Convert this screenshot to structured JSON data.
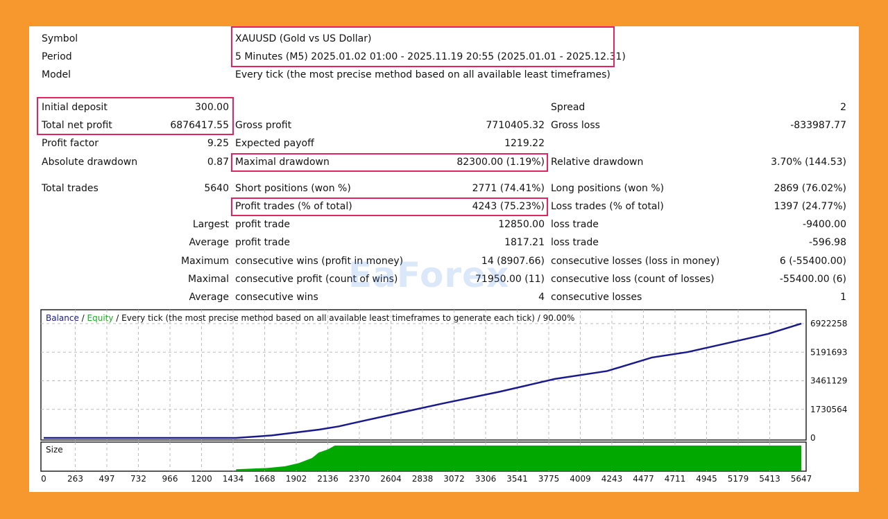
{
  "header": [
    {
      "label": "Symbol",
      "value": "XAUUSD (Gold vs US Dollar)"
    },
    {
      "label": "Period",
      "value": "5 Minutes (M5) 2025.01.02 01:00 - 2025.11.19 20:55 (2025.01.01 - 2025.12.31)"
    },
    {
      "label": "Model",
      "value": "Every tick (the most precise method based on all available least timeframes)"
    }
  ],
  "stats": [
    [
      {
        "label": "Initial deposit",
        "value": "300.00"
      },
      {
        "label": "",
        "value": ""
      },
      {
        "label": "Spread",
        "value": "2"
      }
    ],
    [
      {
        "label": "Total net profit",
        "value": "6876417.55"
      },
      {
        "label": "Gross profit",
        "value": "7710405.32"
      },
      {
        "label": "Gross loss",
        "value": "-833987.77"
      }
    ],
    [
      {
        "label": "Profit factor",
        "value": "9.25"
      },
      {
        "label": "Expected payoff",
        "value": "1219.22"
      },
      {
        "label": "",
        "value": ""
      }
    ],
    [
      {
        "label": "Absolute drawdown",
        "value": "0.87"
      },
      {
        "label": "Maximal drawdown",
        "value": "82300.00 (1.19%)"
      },
      {
        "label": "Relative drawdown",
        "value": "3.70% (144.53)"
      }
    ],
    [
      {
        "label": "Total trades",
        "value": "5640"
      },
      {
        "label": "Short positions (won %)",
        "value": "2771 (74.41%)"
      },
      {
        "label": "Long positions (won %)",
        "value": "2869 (76.02%)"
      }
    ],
    [
      {
        "label": "",
        "value": ""
      },
      {
        "label": "Profit trades (% of total)",
        "value": "4243 (75.23%)"
      },
      {
        "label": "Loss trades (% of total)",
        "value": "1397 (24.77%)"
      }
    ],
    [
      {
        "label": "",
        "value": "Largest"
      },
      {
        "label": "profit trade",
        "value": "12850.00"
      },
      {
        "label": "loss trade",
        "value": "-9400.00"
      }
    ],
    [
      {
        "label": "",
        "value": "Average"
      },
      {
        "label": "profit trade",
        "value": "1817.21"
      },
      {
        "label": "loss trade",
        "value": "-596.98"
      }
    ],
    [
      {
        "label": "",
        "value": "Maximum"
      },
      {
        "label": "consecutive wins (profit in money)",
        "value": "14 (8907.66)"
      },
      {
        "label": "consecutive losses (loss in money)",
        "value": "6 (-55400.00)"
      }
    ],
    [
      {
        "label": "",
        "value": "Maximal"
      },
      {
        "label": "consecutive profit (count of wins)",
        "value": "71950.00 (11)"
      },
      {
        "label": "consecutive loss (count of losses)",
        "value": "-55400.00 (6)"
      }
    ],
    [
      {
        "label": "",
        "value": "Average"
      },
      {
        "label": "consecutive wins",
        "value": "4"
      },
      {
        "label": "consecutive losses",
        "value": "1"
      }
    ]
  ],
  "watermark_logo": "EaForex",
  "colors": {
    "highlight": "#e0245e",
    "balance": "#1a1a8c",
    "equity": "#22aa22",
    "size": "#00a800",
    "background": "#f7982f"
  },
  "chart_data": {
    "type": "line",
    "legend": {
      "balance": "Balance",
      "sep1": " / ",
      "equity": "Equity",
      "rest": " / Every tick (the most precise method based on all available least timeframes to generate each tick) / 90.00%"
    },
    "xticks": [
      "0",
      "263",
      "497",
      "732",
      "966",
      "1200",
      "1434",
      "1668",
      "1902",
      "2136",
      "2370",
      "2604",
      "2838",
      "3072",
      "3306",
      "3541",
      "3775",
      "4009",
      "4243",
      "4477",
      "4711",
      "4945",
      "5179",
      "5413",
      "5647"
    ],
    "yticks": [
      "6922258",
      "5191693",
      "3461129",
      "1730564",
      "0"
    ],
    "ylim": [
      0,
      6922258
    ],
    "xlim": [
      0,
      5647
    ],
    "grid": true,
    "balance": [
      [
        0,
        300
      ],
      [
        1434,
        300
      ],
      [
        1700,
        150000
      ],
      [
        2053,
        503000
      ],
      [
        2200,
        700000
      ],
      [
        2363,
        1000000
      ],
      [
        2700,
        1600000
      ],
      [
        2983,
        2100000
      ],
      [
        3400,
        2800000
      ],
      [
        3810,
        3570000
      ],
      [
        4200,
        4050000
      ],
      [
        4534,
        4870000
      ],
      [
        4800,
        5200000
      ],
      [
        5102,
        5750000
      ],
      [
        5400,
        6300000
      ],
      [
        5647,
        6922258
      ]
    ],
    "size_panel_label": "Size",
    "size": [
      [
        1434,
        0.05
      ],
      [
        1668,
        0.1
      ],
      [
        1800,
        0.17
      ],
      [
        1902,
        0.3
      ],
      [
        2000,
        0.5
      ],
      [
        2050,
        0.72
      ],
      [
        2120,
        0.85
      ],
      [
        2170,
        1.0
      ],
      [
        5647,
        1.0
      ]
    ]
  }
}
